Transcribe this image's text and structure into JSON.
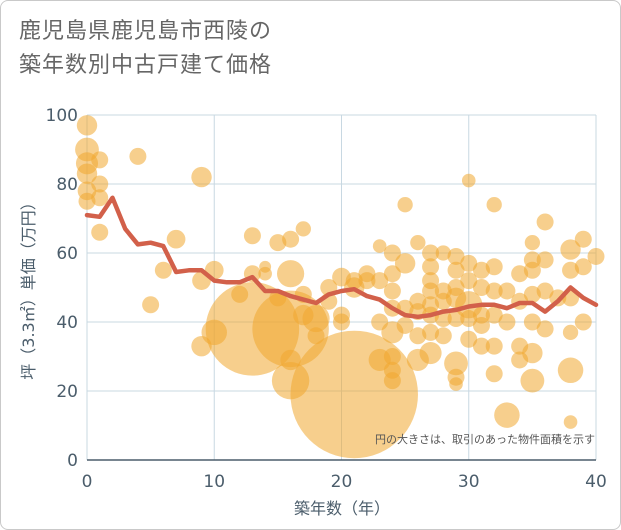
{
  "title": {
    "line1": "鹿児島県鹿児島市西陵の",
    "line2": "築年数別中古戸建て価格"
  },
  "note": "円の大きさは、取引のあった物件面積を示す",
  "colors": {
    "bubble": "#f0a830",
    "line": "#d2604a",
    "grid": "#c8d8e2",
    "axis": "#4b5d6b"
  },
  "chart_data": {
    "type": "scatter",
    "xlabel": "築年数（年）",
    "ylabel": "坪（3.3㎡）単価（万円）",
    "xlim": [
      0,
      40
    ],
    "ylim": [
      0,
      100
    ],
    "xticks": [
      "0",
      "10",
      "20",
      "30",
      "40"
    ],
    "yticks": [
      "0",
      "20",
      "40",
      "60",
      "80",
      "100"
    ],
    "grid": true,
    "series": [
      {
        "type": "bubble",
        "points": [
          {
            "x": 0,
            "y": 97,
            "s": 1.2
          },
          {
            "x": 0,
            "y": 90,
            "s": 1.4
          },
          {
            "x": 0,
            "y": 86,
            "s": 1.3
          },
          {
            "x": 0,
            "y": 83,
            "s": 1.2
          },
          {
            "x": 0,
            "y": 78,
            "s": 1.1
          },
          {
            "x": 0,
            "y": 75,
            "s": 1.0
          },
          {
            "x": 1,
            "y": 87,
            "s": 1.0
          },
          {
            "x": 1,
            "y": 80,
            "s": 1.0
          },
          {
            "x": 1,
            "y": 76,
            "s": 1.0
          },
          {
            "x": 1,
            "y": 66,
            "s": 1.0
          },
          {
            "x": 4,
            "y": 88,
            "s": 1.0
          },
          {
            "x": 5,
            "y": 45,
            "s": 1.0
          },
          {
            "x": 6,
            "y": 55,
            "s": 1.0
          },
          {
            "x": 7,
            "y": 64,
            "s": 1.1
          },
          {
            "x": 9,
            "y": 82,
            "s": 1.2
          },
          {
            "x": 9,
            "y": 52,
            "s": 1.1
          },
          {
            "x": 9,
            "y": 33,
            "s": 1.2
          },
          {
            "x": 10,
            "y": 55,
            "s": 1.1
          },
          {
            "x": 10,
            "y": 37,
            "s": 1.5
          },
          {
            "x": 12,
            "y": 48,
            "s": 1.0
          },
          {
            "x": 13,
            "y": 65,
            "s": 1.0
          },
          {
            "x": 13,
            "y": 54,
            "s": 1.0
          },
          {
            "x": 13,
            "y": 38,
            "s": 5.5
          },
          {
            "x": 14,
            "y": 56,
            "s": 0.7
          },
          {
            "x": 14,
            "y": 54,
            "s": 0.8
          },
          {
            "x": 15,
            "y": 63,
            "s": 1.0
          },
          {
            "x": 15,
            "y": 47,
            "s": 1.0
          },
          {
            "x": 16,
            "y": 64,
            "s": 1.0
          },
          {
            "x": 16,
            "y": 54,
            "s": 1.6
          },
          {
            "x": 16,
            "y": 38,
            "s": 4.5
          },
          {
            "x": 16,
            "y": 23,
            "s": 2.2
          },
          {
            "x": 16,
            "y": 29,
            "s": 1.2
          },
          {
            "x": 17,
            "y": 67,
            "s": 0.9
          },
          {
            "x": 17,
            "y": 48,
            "s": 1.0
          },
          {
            "x": 17,
            "y": 42,
            "s": 1.2
          },
          {
            "x": 18,
            "y": 41,
            "s": 1.6
          },
          {
            "x": 18,
            "y": 36,
            "s": 1.0
          },
          {
            "x": 19,
            "y": 50,
            "s": 1.0
          },
          {
            "x": 19,
            "y": 46,
            "s": 1.0
          },
          {
            "x": 20,
            "y": 53,
            "s": 1.1
          },
          {
            "x": 20,
            "y": 42,
            "s": 1.0
          },
          {
            "x": 20,
            "y": 40,
            "s": 1.0
          },
          {
            "x": 21,
            "y": 52,
            "s": 1.0
          },
          {
            "x": 21,
            "y": 50,
            "s": 1.2
          },
          {
            "x": 21,
            "y": 19,
            "s": 7.5
          },
          {
            "x": 22,
            "y": 54,
            "s": 1.0
          },
          {
            "x": 22,
            "y": 52,
            "s": 1.0
          },
          {
            "x": 23,
            "y": 62,
            "s": 0.8
          },
          {
            "x": 23,
            "y": 52,
            "s": 1.0
          },
          {
            "x": 23,
            "y": 40,
            "s": 1.0
          },
          {
            "x": 23,
            "y": 29,
            "s": 1.3
          },
          {
            "x": 24,
            "y": 60,
            "s": 1.0
          },
          {
            "x": 24,
            "y": 54,
            "s": 1.0
          },
          {
            "x": 24,
            "y": 49,
            "s": 1.0
          },
          {
            "x": 24,
            "y": 44,
            "s": 1.0
          },
          {
            "x": 24,
            "y": 37,
            "s": 1.3
          },
          {
            "x": 24,
            "y": 30,
            "s": 1.0
          },
          {
            "x": 24,
            "y": 26,
            "s": 1.0
          },
          {
            "x": 24,
            "y": 23,
            "s": 1.0
          },
          {
            "x": 25,
            "y": 74,
            "s": 0.9
          },
          {
            "x": 25,
            "y": 57,
            "s": 1.2
          },
          {
            "x": 25,
            "y": 44,
            "s": 1.0
          },
          {
            "x": 25,
            "y": 39,
            "s": 1.0
          },
          {
            "x": 26,
            "y": 63,
            "s": 0.9
          },
          {
            "x": 26,
            "y": 46,
            "s": 1.0
          },
          {
            "x": 26,
            "y": 43,
            "s": 1.0
          },
          {
            "x": 26,
            "y": 36,
            "s": 1.0
          },
          {
            "x": 26,
            "y": 29,
            "s": 1.3
          },
          {
            "x": 27,
            "y": 60,
            "s": 1.0
          },
          {
            "x": 27,
            "y": 56,
            "s": 1.0
          },
          {
            "x": 27,
            "y": 52,
            "s": 1.0
          },
          {
            "x": 27,
            "y": 49,
            "s": 1.0
          },
          {
            "x": 27,
            "y": 45,
            "s": 1.0
          },
          {
            "x": 27,
            "y": 42,
            "s": 1.0
          },
          {
            "x": 27,
            "y": 37,
            "s": 1.0
          },
          {
            "x": 27,
            "y": 31,
            "s": 1.3
          },
          {
            "x": 28,
            "y": 60,
            "s": 0.9
          },
          {
            "x": 28,
            "y": 49,
            "s": 1.0
          },
          {
            "x": 28,
            "y": 46,
            "s": 1.0
          },
          {
            "x": 28,
            "y": 41,
            "s": 1.0
          },
          {
            "x": 28,
            "y": 36,
            "s": 1.0
          },
          {
            "x": 29,
            "y": 59,
            "s": 1.0
          },
          {
            "x": 29,
            "y": 55,
            "s": 1.0
          },
          {
            "x": 29,
            "y": 50,
            "s": 1.0
          },
          {
            "x": 29,
            "y": 47,
            "s": 1.2
          },
          {
            "x": 29,
            "y": 41,
            "s": 1.0
          },
          {
            "x": 29,
            "y": 28,
            "s": 1.4
          },
          {
            "x": 29,
            "y": 24,
            "s": 1.0
          },
          {
            "x": 29,
            "y": 22,
            "s": 0.8
          },
          {
            "x": 30,
            "y": 81,
            "s": 0.8
          },
          {
            "x": 30,
            "y": 57,
            "s": 1.0
          },
          {
            "x": 30,
            "y": 52,
            "s": 1.0
          },
          {
            "x": 30,
            "y": 45,
            "s": 1.6
          },
          {
            "x": 30,
            "y": 41,
            "s": 1.0
          },
          {
            "x": 30,
            "y": 35,
            "s": 1.0
          },
          {
            "x": 31,
            "y": 55,
            "s": 1.0
          },
          {
            "x": 31,
            "y": 50,
            "s": 1.0
          },
          {
            "x": 31,
            "y": 42,
            "s": 1.0
          },
          {
            "x": 31,
            "y": 39,
            "s": 1.0
          },
          {
            "x": 31,
            "y": 33,
            "s": 1.0
          },
          {
            "x": 32,
            "y": 74,
            "s": 0.9
          },
          {
            "x": 32,
            "y": 56,
            "s": 1.0
          },
          {
            "x": 32,
            "y": 49,
            "s": 1.0
          },
          {
            "x": 32,
            "y": 42,
            "s": 1.0
          },
          {
            "x": 32,
            "y": 33,
            "s": 1.0
          },
          {
            "x": 32,
            "y": 25,
            "s": 1.0
          },
          {
            "x": 33,
            "y": 49,
            "s": 1.0
          },
          {
            "x": 33,
            "y": 40,
            "s": 1.0
          },
          {
            "x": 33,
            "y": 13,
            "s": 1.5
          },
          {
            "x": 34,
            "y": 54,
            "s": 1.0
          },
          {
            "x": 34,
            "y": 46,
            "s": 1.0
          },
          {
            "x": 34,
            "y": 33,
            "s": 1.0
          },
          {
            "x": 34,
            "y": 29,
            "s": 1.0
          },
          {
            "x": 35,
            "y": 63,
            "s": 0.9
          },
          {
            "x": 35,
            "y": 58,
            "s": 1.0
          },
          {
            "x": 35,
            "y": 55,
            "s": 1.0
          },
          {
            "x": 35,
            "y": 48,
            "s": 1.0
          },
          {
            "x": 35,
            "y": 40,
            "s": 1.0
          },
          {
            "x": 35,
            "y": 31,
            "s": 1.2
          },
          {
            "x": 35,
            "y": 23,
            "s": 1.4
          },
          {
            "x": 36,
            "y": 69,
            "s": 1.0
          },
          {
            "x": 36,
            "y": 58,
            "s": 1.0
          },
          {
            "x": 36,
            "y": 49,
            "s": 1.0
          },
          {
            "x": 36,
            "y": 38,
            "s": 1.0
          },
          {
            "x": 37,
            "y": 47,
            "s": 1.0
          },
          {
            "x": 38,
            "y": 61,
            "s": 1.2
          },
          {
            "x": 38,
            "y": 55,
            "s": 1.0
          },
          {
            "x": 38,
            "y": 47,
            "s": 1.0
          },
          {
            "x": 38,
            "y": 37,
            "s": 0.9
          },
          {
            "x": 38,
            "y": 26,
            "s": 1.5
          },
          {
            "x": 38,
            "y": 11,
            "s": 0.8
          },
          {
            "x": 39,
            "y": 64,
            "s": 1.0
          },
          {
            "x": 39,
            "y": 56,
            "s": 1.0
          },
          {
            "x": 39,
            "y": 40,
            "s": 1.0
          },
          {
            "x": 40,
            "y": 59,
            "s": 1.0
          }
        ]
      },
      {
        "type": "line",
        "x": [
          0,
          1,
          2,
          3,
          4,
          5,
          6,
          7,
          8,
          9,
          10,
          11,
          12,
          13,
          14,
          15,
          16,
          17,
          18,
          19,
          20,
          21,
          22,
          23,
          24,
          25,
          26,
          27,
          28,
          29,
          30,
          31,
          32,
          33,
          34,
          35,
          36,
          37,
          38,
          39,
          40
        ],
        "y": [
          71,
          70.5,
          76,
          67,
          62.5,
          63,
          62,
          54.5,
          55,
          55,
          52,
          51.5,
          51.5,
          53,
          49,
          49,
          47.5,
          46.5,
          45.5,
          48,
          49,
          49.5,
          47.5,
          46.5,
          44,
          42,
          41.5,
          42,
          43,
          43.5,
          44.5,
          45,
          45,
          44,
          45.5,
          45.5,
          43,
          46,
          50,
          47,
          45
        ]
      }
    ]
  }
}
